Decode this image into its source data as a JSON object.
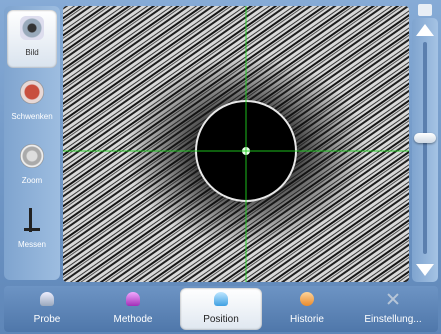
{
  "left_tools": [
    {
      "label": "Bild",
      "icon": "camera-icon",
      "active": true
    },
    {
      "label": "Schwenken",
      "icon": "pan-icon",
      "active": false
    },
    {
      "label": "Zoom",
      "icon": "zoom-icon",
      "active": false
    },
    {
      "label": "Messen",
      "icon": "measure-icon",
      "active": false
    }
  ],
  "zoom_slider": {
    "level": 0.55
  },
  "tabs": [
    {
      "label": "Probe",
      "icon": "probe-icon",
      "active": false
    },
    {
      "label": "Methode",
      "icon": "methode-icon",
      "active": false
    },
    {
      "label": "Position",
      "icon": "position-icon",
      "active": true
    },
    {
      "label": "Historie",
      "icon": "historie-icon",
      "active": false
    },
    {
      "label": "Einstellung...",
      "icon": "settings-icon",
      "active": false
    }
  ],
  "colors": {
    "accent": "#6f98c8",
    "crosshair": "#1fd21f"
  }
}
